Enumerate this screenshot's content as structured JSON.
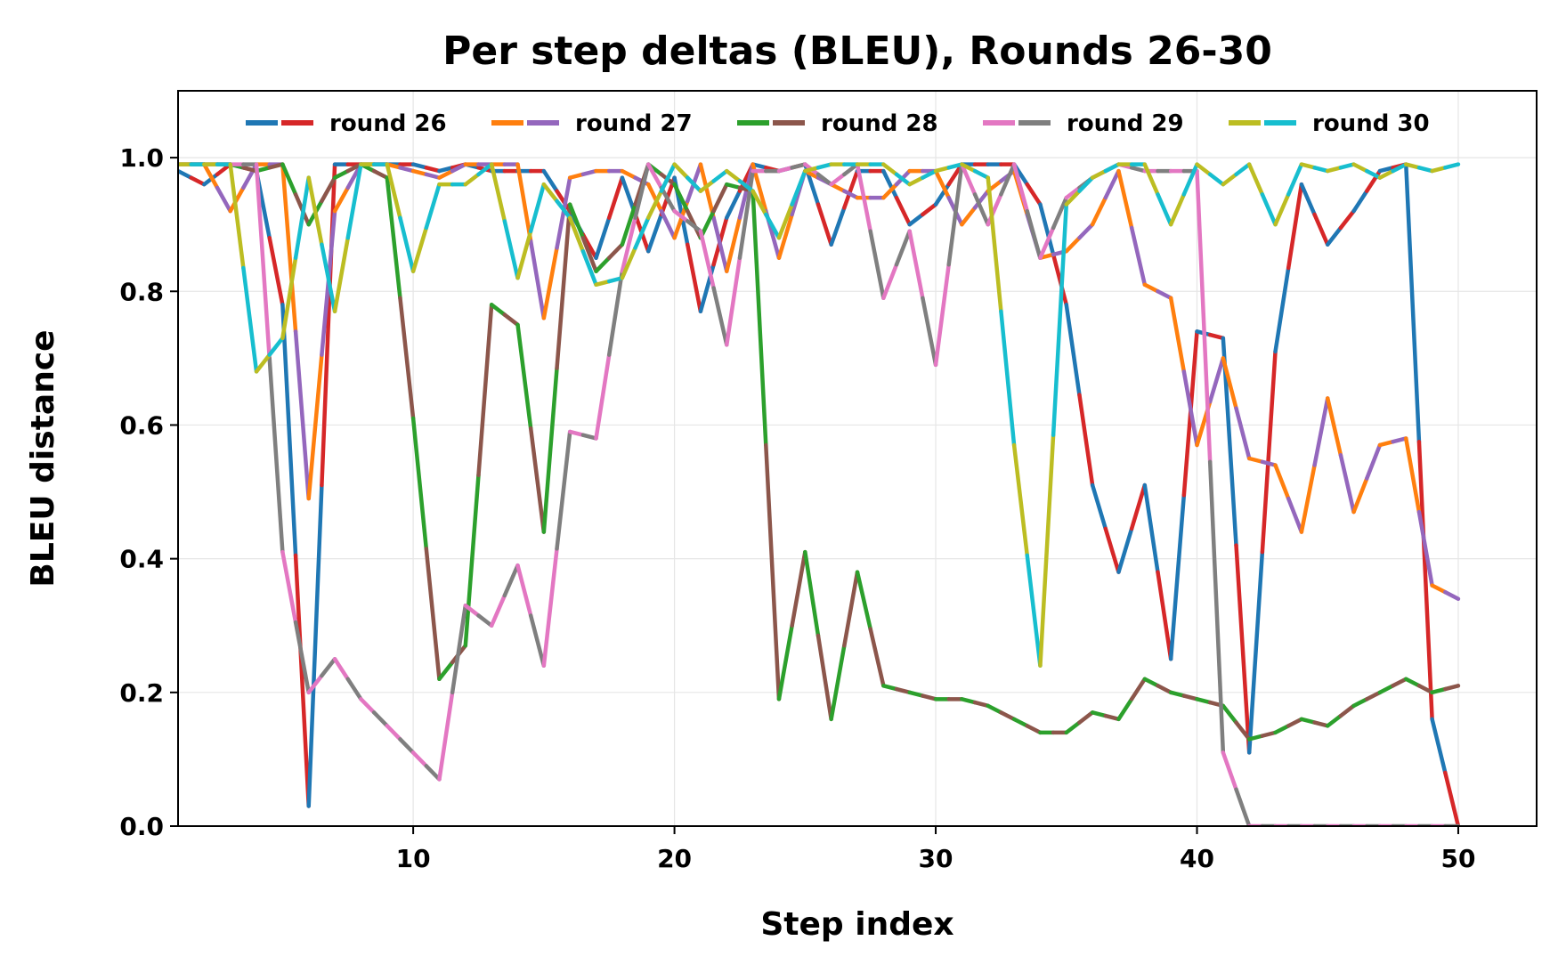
{
  "chart_data": {
    "type": "line",
    "title": "Per step deltas (BLEU), Rounds 26-30",
    "xlabel": "Step index",
    "ylabel": "BLEU distance",
    "xlim": [
      1,
      53
    ],
    "ylim": [
      0,
      1.1
    ],
    "xticks": [
      10,
      20,
      30,
      40,
      50
    ],
    "yticks": [
      "0.0",
      "0.2",
      "0.4",
      "0.6",
      "0.8",
      "1.0"
    ],
    "grid": true,
    "legend_position": "top",
    "legend": [
      {
        "name": "round 26",
        "colors": [
          "#1f77b4",
          "#d62728"
        ]
      },
      {
        "name": "round 27",
        "colors": [
          "#ff7f0e",
          "#9467bd"
        ]
      },
      {
        "name": "round 28",
        "colors": [
          "#2ca02c",
          "#8c564b"
        ]
      },
      {
        "name": "round 29",
        "colors": [
          "#e377c2",
          "#7f7f7f"
        ]
      },
      {
        "name": "round 30",
        "colors": [
          "#bcbd22",
          "#17becf"
        ]
      }
    ],
    "series": [
      {
        "name": "round 26",
        "colors": [
          "#1f77b4",
          "#d62728"
        ],
        "x_start": 1,
        "values": [
          0.98,
          0.96,
          0.99,
          0.98,
          0.78,
          0.03,
          0.99,
          0.99,
          0.99,
          0.99,
          0.98,
          0.99,
          0.98,
          0.98,
          0.98,
          0.92,
          0.85,
          0.97,
          0.86,
          0.97,
          0.77,
          0.91,
          0.99,
          0.98,
          0.99,
          0.87,
          0.98,
          0.98,
          0.9,
          0.93,
          0.99,
          0.99,
          0.99,
          0.93,
          0.78,
          0.51,
          0.38,
          0.51,
          0.25,
          0.74,
          0.73,
          0.11,
          0.71,
          0.96,
          0.87,
          0.92,
          0.98,
          0.99,
          0.16,
          0.0
        ]
      },
      {
        "name": "round 27",
        "colors": [
          "#ff7f0e",
          "#9467bd"
        ],
        "x_start": 1,
        "values": [
          0.99,
          0.99,
          0.92,
          0.99,
          0.99,
          0.49,
          0.92,
          0.99,
          0.99,
          0.98,
          0.97,
          0.99,
          0.99,
          0.99,
          0.76,
          0.97,
          0.98,
          0.98,
          0.96,
          0.88,
          0.99,
          0.83,
          0.99,
          0.85,
          0.98,
          0.96,
          0.94,
          0.94,
          0.98,
          0.98,
          0.9,
          0.95,
          0.98,
          0.85,
          0.86,
          0.9,
          0.98,
          0.81,
          0.79,
          0.57,
          0.7,
          0.55,
          0.54,
          0.44,
          0.64,
          0.47,
          0.57,
          0.58,
          0.36,
          0.34
        ]
      },
      {
        "name": "round 28",
        "colors": [
          "#2ca02c",
          "#8c564b"
        ],
        "x_start": 1,
        "values": [
          0.99,
          0.99,
          0.99,
          0.98,
          0.99,
          0.9,
          0.97,
          0.99,
          0.97,
          0.61,
          0.22,
          0.27,
          0.78,
          0.75,
          0.44,
          0.93,
          0.83,
          0.87,
          0.99,
          0.96,
          0.88,
          0.96,
          0.95,
          0.19,
          0.41,
          0.16,
          0.38,
          0.21,
          0.2,
          0.19,
          0.19,
          0.18,
          0.16,
          0.14,
          0.14,
          0.17,
          0.16,
          0.22,
          0.2,
          0.19,
          0.18,
          0.13,
          0.14,
          0.16,
          0.15,
          0.18,
          0.2,
          0.22,
          0.2,
          0.21
        ]
      },
      {
        "name": "round 29",
        "colors": [
          "#e377c2",
          "#7f7f7f"
        ],
        "x_start": 1,
        "values": [
          0.99,
          0.99,
          0.99,
          0.99,
          0.41,
          0.2,
          0.25,
          0.19,
          0.15,
          0.11,
          0.07,
          0.33,
          0.3,
          0.39,
          0.24,
          0.59,
          0.58,
          0.83,
          0.99,
          0.92,
          0.89,
          0.72,
          0.98,
          0.98,
          0.99,
          0.96,
          0.99,
          0.79,
          0.89,
          0.69,
          0.99,
          0.9,
          0.99,
          0.85,
          0.94,
          0.97,
          0.99,
          0.98,
          0.98,
          0.98,
          0.11,
          0.0,
          0.0,
          0.0,
          0.0,
          0.0,
          0.0,
          0.0,
          0.0,
          0.0
        ]
      },
      {
        "name": "round 30",
        "colors": [
          "#bcbd22",
          "#17becf"
        ],
        "x_start": 1,
        "values": [
          0.99,
          0.99,
          0.99,
          0.68,
          0.73,
          0.97,
          0.77,
          0.99,
          0.99,
          0.83,
          0.96,
          0.96,
          0.99,
          0.82,
          0.96,
          0.91,
          0.81,
          0.82,
          0.91,
          0.99,
          0.95,
          0.98,
          0.95,
          0.88,
          0.98,
          0.99,
          0.99,
          0.99,
          0.96,
          0.98,
          0.99,
          0.97,
          0.57,
          0.24,
          0.93,
          0.97,
          0.99,
          0.99,
          0.9,
          0.99,
          0.96,
          0.99,
          0.9,
          0.99,
          0.98,
          0.99,
          0.97,
          0.99,
          0.98,
          0.99
        ]
      }
    ]
  }
}
